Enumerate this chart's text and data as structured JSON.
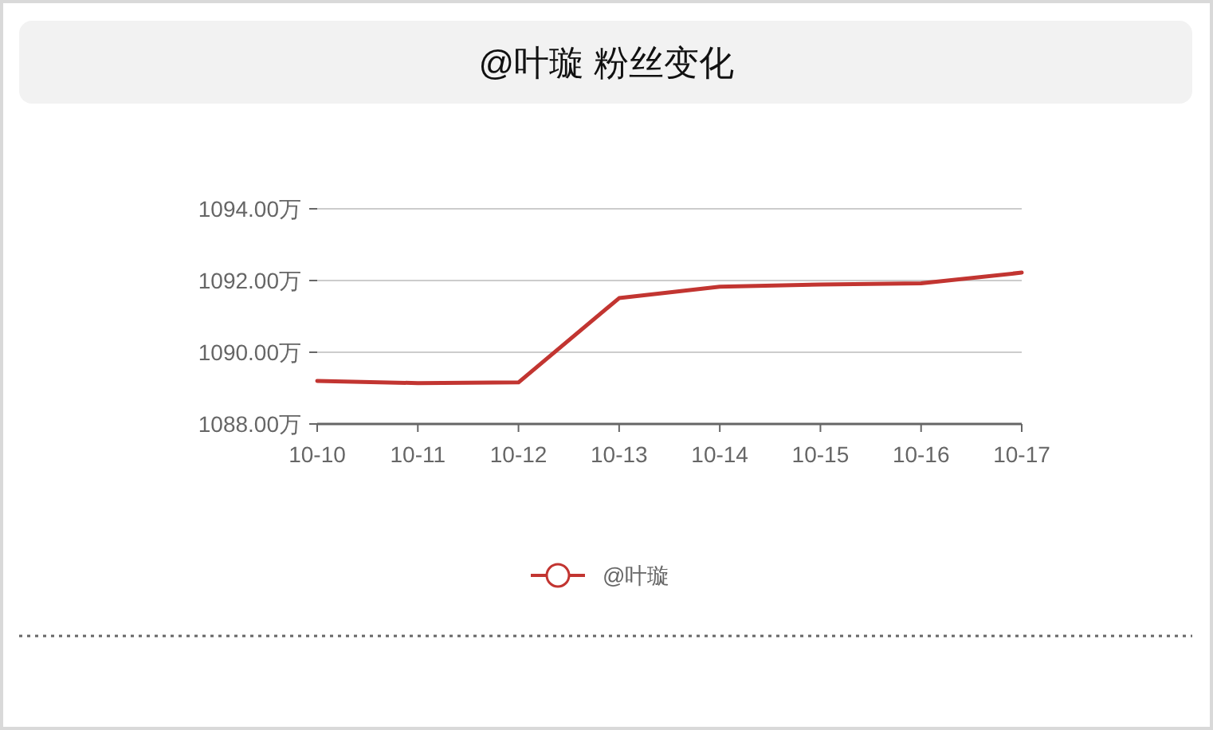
{
  "chart_data": {
    "type": "line",
    "title": "@叶璇 粉丝变化",
    "categories": [
      "10-10",
      "10-11",
      "10-12",
      "10-13",
      "10-14",
      "10-15",
      "10-16",
      "10-17"
    ],
    "series": [
      {
        "name": "@叶璇",
        "color": "#c23531",
        "values": [
          1089.2,
          1089.14,
          1089.16,
          1091.51,
          1091.83,
          1091.89,
          1091.92,
          1092.22
        ]
      }
    ],
    "ylim": [
      1088,
      1094
    ],
    "yticks": [
      {
        "value": 1088,
        "label": "1088.00万"
      },
      {
        "value": 1090,
        "label": "1090.00万"
      },
      {
        "value": 1092,
        "label": "1092.00万"
      },
      {
        "value": 1094,
        "label": "1094.00万"
      }
    ],
    "grid": "y",
    "legend": "bottom",
    "marker": "none",
    "line_style": "solid"
  }
}
